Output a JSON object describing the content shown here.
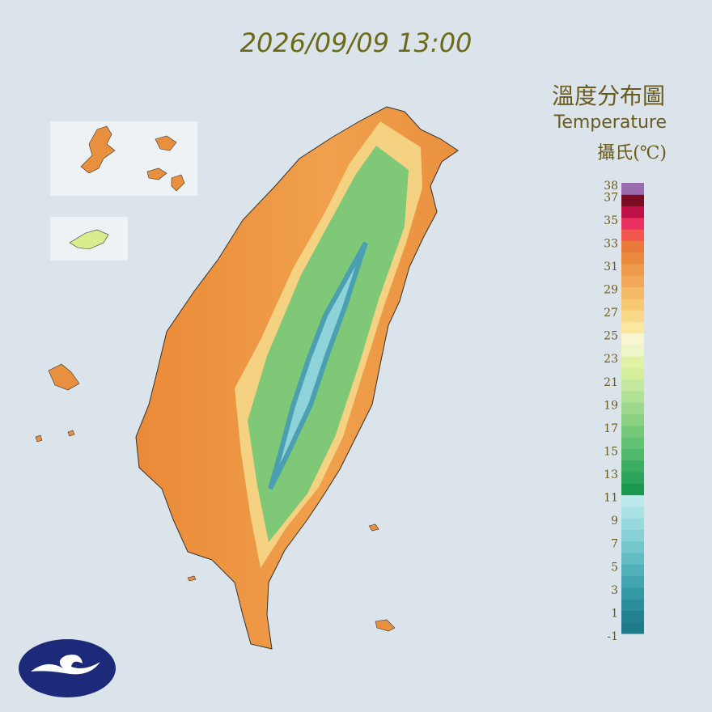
{
  "header": {
    "timestamp": "2026/09/09 13:00"
  },
  "legend": {
    "title": "溫度分布圖",
    "subtitle": "Temperature",
    "unit": "攝氏(℃)",
    "lim": [
      -1,
      38
    ],
    "ticks": [
      38,
      37,
      35,
      33,
      31,
      29,
      27,
      25,
      23,
      21,
      19,
      17,
      15,
      13,
      11,
      9,
      7,
      5,
      3,
      1,
      -1
    ],
    "colors": [
      "#1f7a8a",
      "#23808f",
      "#2b8d9a",
      "#3399a5",
      "#42a5b0",
      "#52b0ba",
      "#63bcc4",
      "#74c6cd",
      "#87d0d6",
      "#98d9de",
      "#a9e1e5",
      "#bce9ec",
      "#1a9850",
      "#2ba35a",
      "#3cae62",
      "#4fb86a",
      "#62c172",
      "#76c97a",
      "#8ad183",
      "#9dd98c",
      "#b0e195",
      "#c4e89d",
      "#d4ee9c",
      "#e0f2a6",
      "#eef5c8",
      "#f8f5d2",
      "#fbe7a0",
      "#f8d98a",
      "#f6c872",
      "#f4b964",
      "#f2a85a",
      "#ee9a4c",
      "#eb8a3e",
      "#e97a3c",
      "#f2584e",
      "#e93060",
      "#c01048",
      "#7a0c22",
      "#9b6bb0"
    ]
  }
}
